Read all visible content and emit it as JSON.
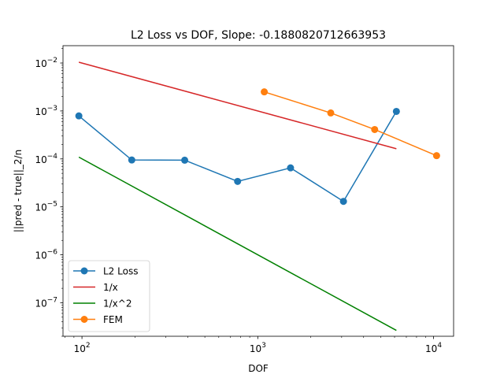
{
  "chart_data": {
    "type": "line",
    "title": "L2 Loss vs DOF, Slope: -0.1880820712663953",
    "xlabel": "DOF",
    "ylabel": "||pred - true||_2/n",
    "xscale": "log",
    "yscale": "log",
    "xlim": [
      78,
      13000
    ],
    "ylim": [
      2e-08,
      0.023
    ],
    "xticks": [
      {
        "value": 100,
        "base": "10",
        "exp": "2"
      },
      {
        "value": 1000,
        "base": "10",
        "exp": "3"
      },
      {
        "value": 10000,
        "base": "10",
        "exp": "4"
      }
    ],
    "yticks": [
      {
        "value": 1e-07,
        "base": "10",
        "exp": "−7"
      },
      {
        "value": 1e-06,
        "base": "10",
        "exp": "−6"
      },
      {
        "value": 1e-05,
        "base": "10",
        "exp": "−5"
      },
      {
        "value": 0.0001,
        "base": "10",
        "exp": "−4"
      },
      {
        "value": 0.001,
        "base": "10",
        "exp": "−3"
      },
      {
        "value": 0.01,
        "base": "10",
        "exp": "−2"
      }
    ],
    "grid": false,
    "legend_position": "lower-left",
    "series": [
      {
        "name": "L2 Loss",
        "color": "#1f77b4",
        "markers": true,
        "x": [
          96,
          192,
          384,
          768,
          1536,
          3072,
          6144
        ],
        "y": [
          0.00079,
          9.5e-05,
          9.4e-05,
          3.4e-05,
          6.5e-05,
          1.3e-05,
          0.00098
        ]
      },
      {
        "name": "1/x",
        "color": "#d62728",
        "markers": false,
        "x": [
          96,
          6144
        ],
        "y": [
          0.0104,
          0.000163
        ]
      },
      {
        "name": "1/x^2",
        "color": "#008000",
        "markers": false,
        "x": [
          96,
          6144
        ],
        "y": [
          0.000109,
          2.65e-08
        ]
      },
      {
        "name": "FEM",
        "color": "#ff7f0e",
        "markers": true,
        "x": [
          1089,
          2601,
          4624,
          10404
        ],
        "y": [
          0.0025,
          0.00091,
          0.00041,
          0.000117
        ]
      }
    ]
  }
}
